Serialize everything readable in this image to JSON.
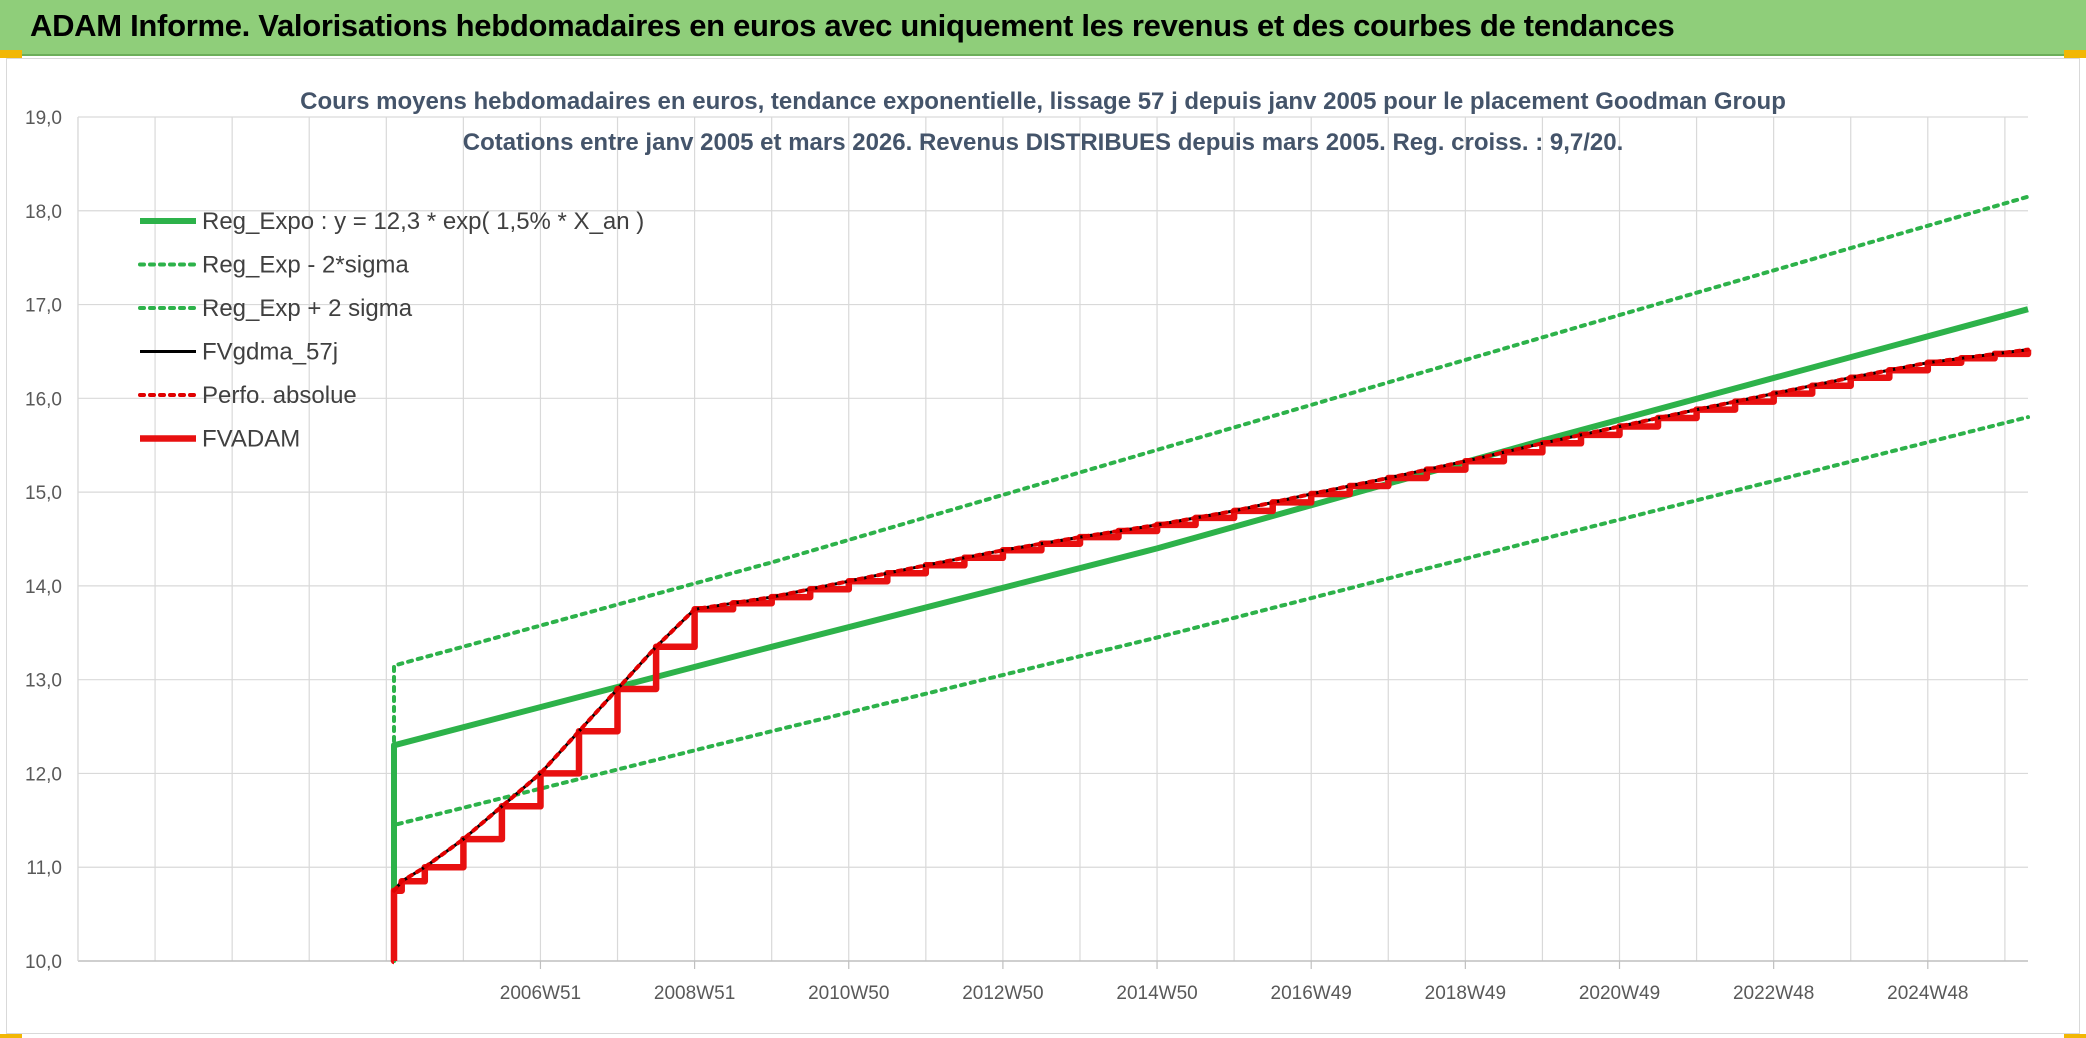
{
  "banner": {
    "title": "ADAM Informe. Valorisations hebdomadaires en euros avec uniquement les revenus et des courbes de tendances"
  },
  "chart_data": {
    "type": "line",
    "title": "Cours moyens hebdomadaires en euros, tendance exponentielle, lissage 57 j depuis janv 2005 pour le placement Goodman Group",
    "subtitle": "Cotations entre janv 2005 et mars 2026. Revenus DISTRIBUES depuis mars 2005. Reg. croiss. : 9,7/20.",
    "ylim": [
      10,
      19
    ],
    "yticks": [
      "10,0",
      "11,0",
      "12,0",
      "13,0",
      "14,0",
      "15,0",
      "16,0",
      "17,0",
      "18,0",
      "19,0"
    ],
    "xlim": [
      2001.0,
      2026.3
    ],
    "xticks": [
      {
        "x": 2007.0,
        "label": "2006W51"
      },
      {
        "x": 2009.0,
        "label": "2008W51"
      },
      {
        "x": 2011.0,
        "label": "2010W50"
      },
      {
        "x": 2013.0,
        "label": "2012W50"
      },
      {
        "x": 2015.0,
        "label": "2014W50"
      },
      {
        "x": 2017.0,
        "label": "2016W49"
      },
      {
        "x": 2019.0,
        "label": "2018W49"
      },
      {
        "x": 2021.0,
        "label": "2020W49"
      },
      {
        "x": 2023.0,
        "label": "2022W48"
      },
      {
        "x": 2025.0,
        "label": "2024W48"
      }
    ],
    "grid": true,
    "legend_position": "top-left",
    "series": [
      {
        "name": "Reg_Expo : y = 12,3 * exp( 1,5% *  X_an )",
        "color": "#2db24a",
        "style": "solid-thick",
        "x": [
          2005.1,
          2005.1,
          2010.0,
          2015.0,
          2020.0,
          2026.3
        ],
        "y": [
          10.0,
          12.3,
          13.35,
          14.4,
          15.55,
          16.95
        ]
      },
      {
        "name": "Reg_Exp - 2*sigma",
        "color": "#2db24a",
        "style": "dotted",
        "x": [
          2005.1,
          2005.1,
          2010.0,
          2015.0,
          2020.0,
          2026.3
        ],
        "y": [
          10.0,
          11.45,
          12.45,
          13.45,
          14.5,
          15.8
        ]
      },
      {
        "name": "Reg_Exp + 2 sigma",
        "color": "#2db24a",
        "style": "dotted",
        "x": [
          2005.1,
          2005.1,
          2010.0,
          2015.0,
          2020.0,
          2026.3
        ],
        "y": [
          10.0,
          13.15,
          14.25,
          15.45,
          16.65,
          18.15
        ]
      },
      {
        "name": "FVgdma_57j",
        "color": "#000000",
        "style": "solid",
        "x": [
          2005.1,
          2005.2,
          2005.5,
          2006.0,
          2006.5,
          2007.0,
          2007.5,
          2008.0,
          2008.5,
          2009.0,
          2010.0,
          2011.0,
          2012.0,
          2013.0,
          2014.0,
          2015.0,
          2016.0,
          2017.0,
          2018.0,
          2019.0,
          2020.0,
          2021.0,
          2022.0,
          2023.0,
          2024.0,
          2025.0,
          2026.3
        ],
        "y": [
          10.75,
          10.85,
          11.0,
          11.3,
          11.65,
          12.0,
          12.45,
          12.9,
          13.35,
          13.75,
          13.88,
          14.05,
          14.22,
          14.38,
          14.52,
          14.65,
          14.8,
          14.98,
          15.15,
          15.33,
          15.52,
          15.7,
          15.88,
          16.05,
          16.22,
          16.38,
          16.52
        ]
      },
      {
        "name": "Perfo. absolue",
        "color": "#e00000",
        "style": "dotted",
        "x": [
          2005.1,
          2005.2,
          2005.5,
          2006.0,
          2006.5,
          2007.0,
          2007.5,
          2008.0,
          2008.5,
          2009.0,
          2010.0,
          2011.0,
          2012.0,
          2013.0,
          2014.0,
          2015.0,
          2016.0,
          2017.0,
          2018.0,
          2019.0,
          2020.0,
          2021.0,
          2022.0,
          2023.0,
          2024.0,
          2025.0,
          2026.3
        ],
        "y": [
          10.75,
          10.85,
          11.0,
          11.3,
          11.65,
          12.0,
          12.45,
          12.9,
          13.35,
          13.75,
          13.88,
          14.05,
          14.22,
          14.38,
          14.52,
          14.65,
          14.8,
          14.98,
          15.15,
          15.33,
          15.52,
          15.7,
          15.88,
          16.05,
          16.22,
          16.38,
          16.52
        ]
      },
      {
        "name": "FVADAM",
        "color": "#e81010",
        "style": "step-thick",
        "x": [
          2005.1,
          2005.1,
          2005.2,
          2005.5,
          2006.0,
          2006.5,
          2007.0,
          2007.5,
          2008.0,
          2008.5,
          2009.0,
          2010.0,
          2011.0,
          2012.0,
          2013.0,
          2014.0,
          2015.0,
          2016.0,
          2017.0,
          2018.0,
          2019.0,
          2020.0,
          2021.0,
          2022.0,
          2023.0,
          2024.0,
          2025.0,
          2026.3
        ],
        "y": [
          10.0,
          10.75,
          10.85,
          11.0,
          11.3,
          11.65,
          12.0,
          12.45,
          12.9,
          13.35,
          13.75,
          13.88,
          14.05,
          14.22,
          14.38,
          14.52,
          14.65,
          14.8,
          14.98,
          15.15,
          15.33,
          15.52,
          15.7,
          15.88,
          16.05,
          16.22,
          16.38,
          16.52
        ]
      }
    ]
  }
}
